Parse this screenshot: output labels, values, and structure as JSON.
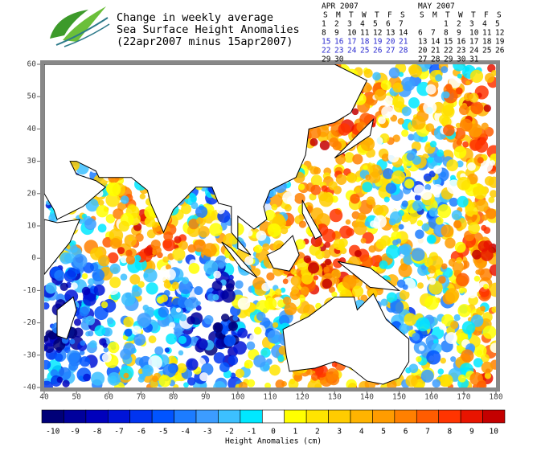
{
  "title_lines": [
    "Change in weekly average",
    "Sea Surface Height Anomalies",
    "(22apr2007 minus 15apr2007)"
  ],
  "calendars": [
    {
      "month": "APR 2007",
      "weekdays": [
        "S",
        "M",
        "T",
        "W",
        "T",
        "F",
        "S"
      ],
      "weeks": [
        [
          1,
          2,
          3,
          4,
          5,
          6,
          7
        ],
        [
          8,
          9,
          10,
          11,
          12,
          13,
          14
        ],
        [
          15,
          16,
          17,
          18,
          19,
          20,
          21
        ],
        [
          22,
          23,
          24,
          25,
          26,
          27,
          28
        ],
        [
          29,
          30,
          null,
          null,
          null,
          null,
          null
        ]
      ],
      "highlight_rows": [
        2,
        3
      ]
    },
    {
      "month": "MAY 2007",
      "weekdays": [
        "S",
        "M",
        "T",
        "W",
        "T",
        "F",
        "S"
      ],
      "weeks": [
        [
          null,
          null,
          1,
          2,
          3,
          4,
          5
        ],
        [
          6,
          7,
          8,
          9,
          10,
          11,
          12
        ],
        [
          13,
          14,
          15,
          16,
          17,
          18,
          19
        ],
        [
          20,
          21,
          22,
          23,
          24,
          25,
          26
        ],
        [
          27,
          28,
          29,
          30,
          31,
          null,
          null
        ]
      ],
      "highlight_rows": []
    }
  ],
  "highlight_color": "#2a2ad0",
  "map": {
    "xlim": [
      40,
      180
    ],
    "ylim": [
      -40,
      60
    ],
    "xticks": [
      40,
      50,
      60,
      70,
      80,
      90,
      100,
      110,
      120,
      130,
      140,
      150,
      160,
      170,
      180
    ],
    "yticks": [
      -40,
      -30,
      -20,
      -10,
      0,
      10,
      20,
      30,
      40,
      50,
      60
    ]
  },
  "legend": {
    "title": "Height Anomalies (cm)",
    "values": [
      -10,
      -9,
      -8,
      -7,
      -6,
      -5,
      -4,
      -3,
      -2,
      -1,
      0,
      1,
      2,
      3,
      4,
      5,
      6,
      7,
      8,
      9,
      10
    ],
    "colors": [
      "#000078",
      "#00009c",
      "#0000bc",
      "#0014d8",
      "#0034f0",
      "#0054ff",
      "#1c7cff",
      "#3c9cff",
      "#3cc0ff",
      "#00e8ff",
      "#ffffff",
      "#ffff00",
      "#ffe400",
      "#ffcc00",
      "#ffb400",
      "#ff9c00",
      "#ff8000",
      "#ff5c00",
      "#ff3400",
      "#e81400",
      "#c40000"
    ]
  }
}
